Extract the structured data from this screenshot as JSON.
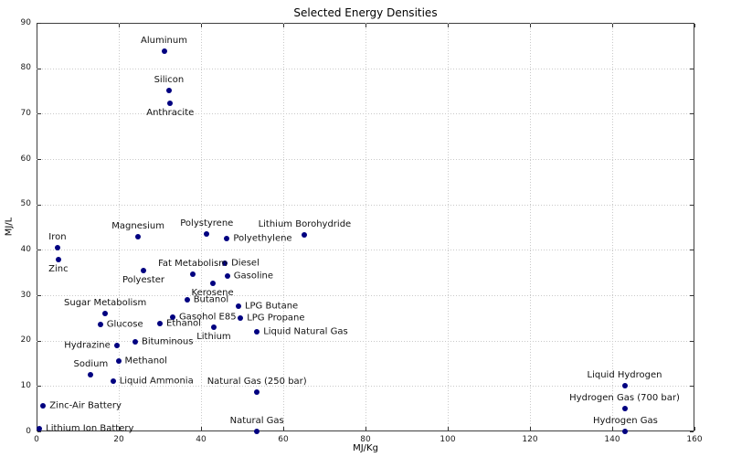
{
  "chart_data": {
    "type": "scatter",
    "title": "Selected Energy Densities",
    "xlabel": "MJ/Kg",
    "ylabel": "MJ/L",
    "xlim": [
      0,
      160
    ],
    "ylim": [
      0,
      90
    ],
    "xticks": [
      0,
      20,
      40,
      60,
      80,
      100,
      120,
      140,
      160
    ],
    "yticks": [
      0,
      10,
      20,
      30,
      40,
      50,
      60,
      70,
      80,
      90
    ],
    "grid": true,
    "legend": false,
    "colors": {
      "marker": "#000080",
      "grid": "#c9c9c9",
      "spine": "#3f3f3f",
      "text": "#111111"
    },
    "points": [
      {
        "label": "Aluminum",
        "x": 31.0,
        "y": 83.8,
        "label_pos": "above"
      },
      {
        "label": "Silicon",
        "x": 32.2,
        "y": 75.1,
        "label_pos": "above"
      },
      {
        "label": "Anthracite",
        "x": 32.5,
        "y": 72.3,
        "label_pos": "below"
      },
      {
        "label": "Lithium Borohydride",
        "x": 65.2,
        "y": 43.3,
        "label_pos": "above"
      },
      {
        "label": "Polystyrene",
        "x": 41.4,
        "y": 43.5,
        "label_pos": "above"
      },
      {
        "label": "Magnesium",
        "x": 24.7,
        "y": 42.9,
        "label_pos": "above"
      },
      {
        "label": "Polyethylene",
        "x": 46.3,
        "y": 42.4,
        "label_pos": "right"
      },
      {
        "label": "Iron",
        "x": 5.1,
        "y": 40.5,
        "label_pos": "above"
      },
      {
        "label": "Zinc",
        "x": 5.3,
        "y": 37.9,
        "label_pos": "below"
      },
      {
        "label": "Diesel",
        "x": 45.8,
        "y": 37.0,
        "label_pos": "right"
      },
      {
        "label": "Polyester",
        "x": 26.0,
        "y": 35.4,
        "label_pos": "below"
      },
      {
        "label": "Fat Metabolism",
        "x": 38.0,
        "y": 34.7,
        "label_pos": "above"
      },
      {
        "label": "Gasoline",
        "x": 46.4,
        "y": 34.2,
        "label_pos": "right"
      },
      {
        "label": "Kerosene",
        "x": 42.8,
        "y": 32.7,
        "label_pos": "below"
      },
      {
        "label": "Butanol",
        "x": 36.6,
        "y": 28.9,
        "label_pos": "right"
      },
      {
        "label": "LPG Butane",
        "x": 49.1,
        "y": 27.5,
        "label_pos": "right"
      },
      {
        "label": "Sugar Metabolism",
        "x": 16.7,
        "y": 26.0,
        "label_pos": "above"
      },
      {
        "label": "LPG Propane",
        "x": 49.6,
        "y": 25.0,
        "label_pos": "right"
      },
      {
        "label": "Gasohol E85",
        "x": 33.1,
        "y": 25.2,
        "label_pos": "right"
      },
      {
        "label": "Ethanol",
        "x": 30.0,
        "y": 23.8,
        "label_pos": "right"
      },
      {
        "label": "Glucose",
        "x": 15.5,
        "y": 23.6,
        "label_pos": "right"
      },
      {
        "label": "Lithium",
        "x": 43.1,
        "y": 23.0,
        "label_pos": "below"
      },
      {
        "label": "Liquid Natural Gas",
        "x": 53.6,
        "y": 22.0,
        "label_pos": "right"
      },
      {
        "label": "Bituminous",
        "x": 24.0,
        "y": 19.8,
        "label_pos": "right"
      },
      {
        "label": "Hydrazine",
        "x": 19.5,
        "y": 19.0,
        "label_pos": "left"
      },
      {
        "label": "Methanol",
        "x": 19.9,
        "y": 15.5,
        "label_pos": "right"
      },
      {
        "label": "Sodium",
        "x": 13.2,
        "y": 12.4,
        "label_pos": "above"
      },
      {
        "label": "Liquid Ammonia",
        "x": 18.6,
        "y": 11.1,
        "label_pos": "right"
      },
      {
        "label": "Natural Gas (250 bar)",
        "x": 53.6,
        "y": 8.7,
        "label_pos": "above"
      },
      {
        "label": "Zinc-Air Battery",
        "x": 1.6,
        "y": 5.7,
        "label_pos": "right"
      },
      {
        "label": "Lithium Ion Battery",
        "x": 0.7,
        "y": 0.6,
        "label_pos": "right"
      },
      {
        "label": "Natural Gas",
        "x": 53.6,
        "y": 0.04,
        "label_pos": "above"
      },
      {
        "label": "Liquid Hydrogen",
        "x": 143.0,
        "y": 10.0,
        "label_pos": "above"
      },
      {
        "label": "Hydrogen Gas (700 bar)",
        "x": 143.0,
        "y": 5.0,
        "label_pos": "above"
      },
      {
        "label": "Hydrogen Gas",
        "x": 143.2,
        "y": 0.04,
        "label_pos": "above"
      }
    ]
  }
}
